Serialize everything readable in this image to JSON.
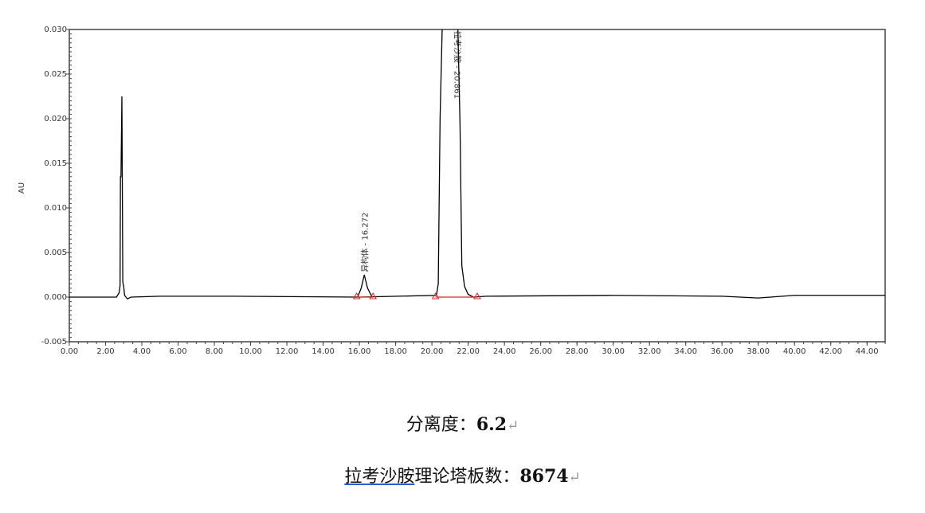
{
  "chart_data": {
    "type": "line",
    "title": "",
    "xlabel": "",
    "ylabel": "AU",
    "xlim": [
      0,
      45
    ],
    "ylim": [
      -0.005,
      0.03
    ],
    "xticks": [
      "0.00",
      "2.00",
      "4.00",
      "6.00",
      "8.00",
      "10.00",
      "12.00",
      "14.00",
      "16.00",
      "18.00",
      "20.00",
      "22.00",
      "24.00",
      "26.00",
      "28.00",
      "30.00",
      "32.00",
      "34.00",
      "36.00",
      "38.00",
      "40.00",
      "42.00",
      "44.00"
    ],
    "yticks": [
      "-0.005",
      "0.000",
      "0.005",
      "0.010",
      "0.015",
      "0.020",
      "0.025",
      "0.030"
    ],
    "grid": false,
    "series": [
      {
        "color": "#000000",
        "x": [
          0,
          2.6,
          2.75,
          2.8,
          2.82,
          2.85,
          2.9,
          2.95,
          3.0,
          3.05,
          3.2,
          3.4,
          5,
          9,
          16,
          20.25,
          20.35,
          20.45,
          20.6,
          21.4,
          21.55,
          21.65,
          21.8,
          22.0,
          22.3,
          23,
          30,
          36,
          38,
          40,
          45
        ],
        "y": [
          0,
          0,
          0.0005,
          0.0013,
          0.0135,
          0.0135,
          0.0225,
          0.0017,
          0.0012,
          0.0002,
          -0.0002,
          0,
          0.0001,
          0.0001,
          0,
          0.0002,
          0.0015,
          0.02,
          0.033,
          0.033,
          0.0194,
          0.0035,
          0.0012,
          0.0003,
          0,
          0.0001,
          0.0002,
          0.0001,
          -0.0001,
          0.0002,
          0.0002
        ]
      },
      {
        "color": "#000000",
        "x": [
          15.9,
          16.1,
          16.27,
          16.45,
          16.7
        ],
        "y": [
          0,
          0.001,
          0.0025,
          0.001,
          0
        ]
      }
    ],
    "peaks": [
      {
        "label": "异构体 - 16.272",
        "rt": 16.272,
        "start": 15.85,
        "end": 16.75
      },
      {
        "label": "拉考沙胺 - 20.861",
        "rt": 20.861,
        "start": 20.2,
        "end": 22.5
      }
    ],
    "integration_color": "#e02020"
  },
  "captions": {
    "resolution_label": "分离度：",
    "resolution_value": "6.2",
    "plates_label_underlined": "拉考沙胺",
    "plates_label_rest": "理论塔板数：",
    "plates_value": "8674",
    "return_mark": "↵"
  }
}
